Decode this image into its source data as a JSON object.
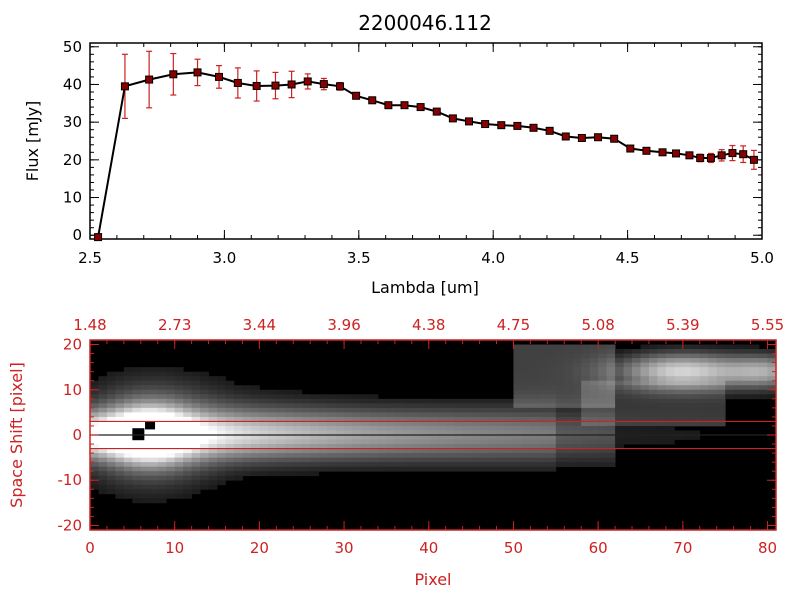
{
  "chart_data": [
    {
      "type": "line",
      "title": "2200046.112",
      "xlabel": "Lambda [um]",
      "ylabel": "Flux [mJy]",
      "xlim": [
        2.5,
        5.0
      ],
      "ylim": [
        -1,
        51
      ],
      "x_ticks": [
        "2.5",
        "3.0",
        "3.5",
        "4.0",
        "4.5",
        "5.0"
      ],
      "y_ticks": [
        "0",
        "10",
        "20",
        "30",
        "40",
        "50"
      ],
      "series": [
        {
          "x": [
            2.53,
            2.63,
            2.72,
            2.81,
            2.9,
            2.98,
            3.05,
            3.12,
            3.19,
            3.25,
            3.31,
            3.37,
            3.43,
            3.49,
            3.55,
            3.61,
            3.67,
            3.73,
            3.79,
            3.85,
            3.91,
            3.97,
            4.03,
            4.09,
            4.15,
            4.21,
            4.27,
            4.33,
            4.39,
            4.45,
            4.51,
            4.57,
            4.63,
            4.68,
            4.73,
            4.77,
            4.81,
            4.85,
            4.89,
            4.93,
            4.97
          ],
          "y": [
            -0.5,
            39.5,
            41.3,
            42.7,
            43.2,
            42.0,
            40.4,
            39.6,
            39.7,
            40.0,
            40.8,
            40.1,
            39.5,
            37.0,
            35.8,
            34.5,
            34.5,
            34.0,
            32.8,
            31.0,
            30.2,
            29.5,
            29.2,
            29.0,
            28.5,
            27.7,
            26.2,
            25.8,
            26.0,
            25.6,
            23.0,
            22.4,
            22.0,
            21.7,
            21.2,
            20.5,
            20.5,
            21.2,
            21.8,
            21.5,
            20.0
          ],
          "yerr": [
            0,
            8.5,
            7.5,
            5.5,
            3.5,
            3.0,
            4.0,
            4.0,
            3.5,
            3.5,
            2.0,
            1.5,
            1.0,
            0.8,
            0.8,
            0.6,
            0.6,
            0.6,
            0.6,
            0.6,
            0.6,
            0.6,
            0.6,
            0.6,
            0.6,
            0.6,
            0.6,
            0.6,
            0.6,
            0.6,
            0.6,
            0.6,
            0.6,
            0.6,
            0.7,
            1.0,
            1.2,
            1.5,
            2.0,
            2.2,
            2.5
          ]
        }
      ]
    },
    {
      "type": "heatmap",
      "xlabel": "Pixel",
      "ylabel": "Space Shift [pixel]",
      "xlim": [
        0,
        81
      ],
      "ylim": [
        -21,
        21
      ],
      "x_ticks": [
        "0",
        "10",
        "20",
        "30",
        "40",
        "50",
        "60",
        "70",
        "80"
      ],
      "y_ticks": [
        "-20",
        "-10",
        "0",
        "10",
        "20"
      ],
      "top_axis_ticks": [
        "1.48",
        "2.73",
        "3.44",
        "3.96",
        "4.38",
        "4.75",
        "5.08",
        "5.39",
        "5.55"
      ],
      "reference_lines_y": [
        3,
        0,
        -3
      ],
      "bright_blobs": [
        {
          "x": 7,
          "y": 0,
          "peak": 1.0
        },
        {
          "x": 70,
          "y": 14,
          "peak": 0.9
        }
      ]
    }
  ],
  "colors": {
    "accent": "#cc2222",
    "data_line": "#000000",
    "marker_fill": "#880000",
    "background": "#ffffff"
  }
}
